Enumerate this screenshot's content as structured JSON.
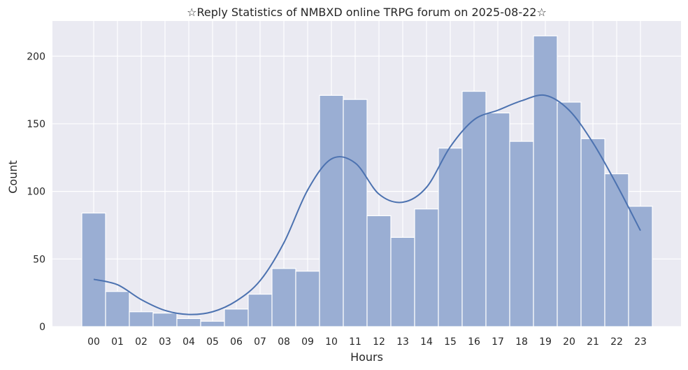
{
  "chart_data": {
    "type": "bar",
    "title": "☆Reply Statistics of NMBXD online TRPG forum on 2025-08-22☆",
    "xlabel": "Hours",
    "ylabel": "Count",
    "categories": [
      "00",
      "01",
      "02",
      "03",
      "04",
      "05",
      "06",
      "07",
      "08",
      "09",
      "10",
      "11",
      "12",
      "13",
      "14",
      "15",
      "16",
      "17",
      "18",
      "19",
      "20",
      "21",
      "22",
      "23"
    ],
    "values": [
      84,
      26,
      11,
      10,
      6,
      4,
      13,
      24,
      43,
      41,
      171,
      168,
      82,
      66,
      87,
      132,
      174,
      158,
      137,
      215,
      166,
      139,
      113,
      89
    ],
    "yticks": [
      0,
      50,
      100,
      150,
      200
    ],
    "ylim": [
      0,
      226
    ],
    "grid": true,
    "kde_line": {
      "x": [
        0,
        1,
        2,
        3,
        4,
        5,
        6,
        7,
        8,
        9,
        10,
        11,
        12,
        13,
        14,
        15,
        16,
        17,
        18,
        19,
        20,
        21,
        22,
        23
      ],
      "y": [
        35,
        31,
        20,
        12,
        9,
        11,
        19,
        34,
        62,
        101,
        124,
        121,
        98,
        92,
        103,
        133,
        153,
        160,
        167,
        171,
        160,
        136,
        105,
        71
      ]
    },
    "colors": {
      "bar_fill": "#9aaed3",
      "bar_edge": "#ffffff",
      "line": "#4c72b0",
      "axes_bg": "#eaeaf2",
      "grid": "#ffffff",
      "text": "#262626"
    }
  }
}
